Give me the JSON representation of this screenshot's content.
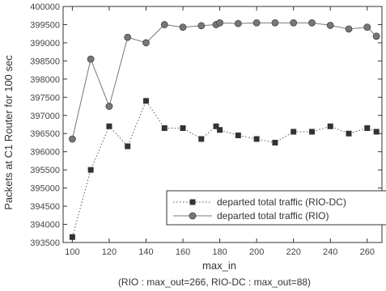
{
  "chart_data": {
    "type": "line",
    "xlabel": "max_in",
    "ylabel": "Packets at C1 Router for 100 sec",
    "note": "(RIO : max_out=266, RIO-DC : max_out=88)",
    "xlim": [
      95,
      268
    ],
    "ylim": [
      393500,
      400000
    ],
    "x_ticks": [
      100,
      120,
      140,
      160,
      180,
      200,
      220,
      240,
      260
    ],
    "y_ticks": [
      393500,
      394000,
      394500,
      395000,
      395500,
      396000,
      396500,
      397000,
      397500,
      398000,
      398500,
      399000,
      399500,
      400000
    ],
    "grid": false,
    "legend_position": "lower-right",
    "series": [
      {
        "name": "departed total traffic (RIO-DC)",
        "marker": "square",
        "line_style": "dotted",
        "color": "#555555",
        "x": [
          100,
          110,
          120,
          130,
          140,
          150,
          160,
          170,
          178,
          180,
          190,
          200,
          210,
          220,
          230,
          240,
          250,
          260,
          265
        ],
        "y": [
          393650,
          395500,
          396700,
          396150,
          397400,
          396650,
          396650,
          396350,
          396700,
          396600,
          396450,
          396350,
          396250,
          396550,
          396550,
          396700,
          396500,
          396650,
          396550
        ]
      },
      {
        "name": "departed total traffic (RIO)",
        "marker": "circle",
        "line_style": "solid",
        "color": "#777777",
        "x": [
          100,
          110,
          120,
          130,
          140,
          150,
          160,
          170,
          178,
          180,
          190,
          200,
          210,
          220,
          230,
          240,
          250,
          260,
          265
        ],
        "y": [
          396350,
          398550,
          397250,
          399150,
          399000,
          399500,
          399430,
          399470,
          399500,
          399550,
          399530,
          399550,
          399550,
          399550,
          399550,
          399480,
          399380,
          399430,
          399180
        ]
      }
    ]
  }
}
